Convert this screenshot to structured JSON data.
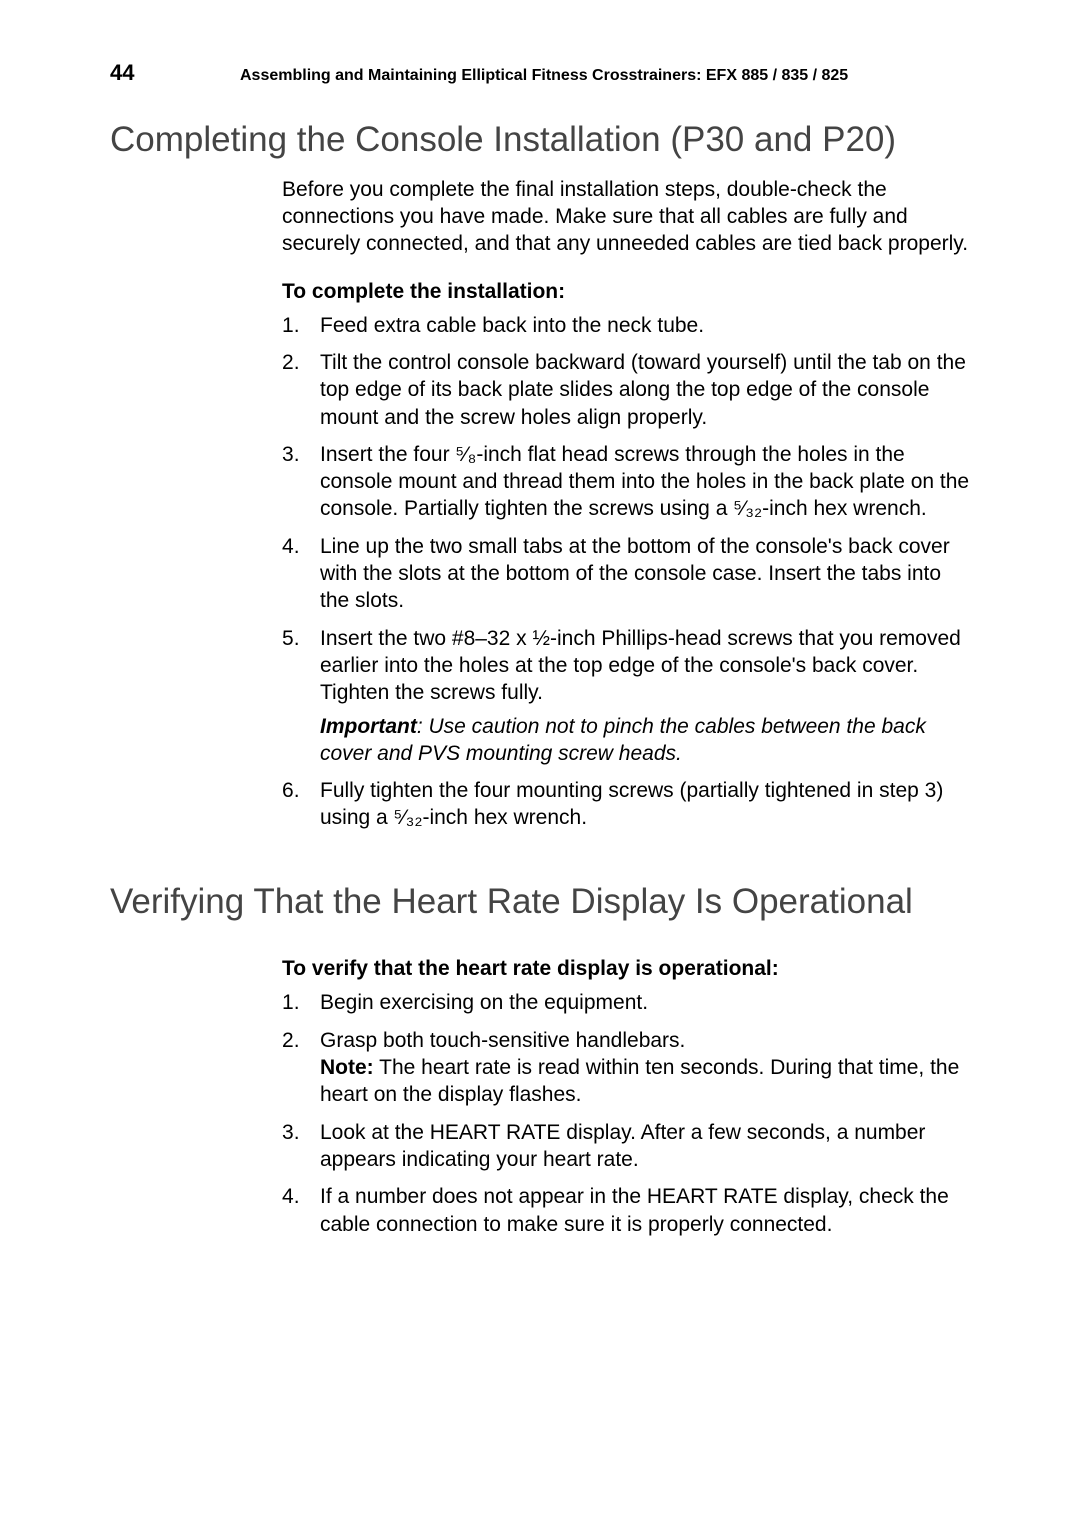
{
  "header": {
    "pageNumber": "44",
    "title": "Assembling and Maintaining Elliptical Fitness Crosstrainers: EFX 885 / 835 / 825"
  },
  "section1": {
    "heading": "Completing the Console Installation (P30 and P20)",
    "intro": "Before you complete the final installation steps, double-check the connections you have made. Make sure that all cables are fully and securely connected, and that any unneeded cables are tied back properly.",
    "subHeading": "To complete the installation:",
    "steps": [
      {
        "text": "Feed extra cable back into the neck tube."
      },
      {
        "text": "Tilt the control console backward (toward yourself) until the tab on the top edge of its back plate slides along the top edge of the console mount and the screw holes align properly."
      },
      {
        "text": "Insert the four ⁵⁄₈-inch flat head screws through the holes in the console mount and thread them into the holes in the back plate on the console. Partially tighten the screws using a ⁵⁄₃₂-inch hex wrench."
      },
      {
        "text": "Line up the two small tabs at the bottom of the console's back cover with the slots at the bottom of the console case. Insert the tabs into the slots."
      },
      {
        "text": "Insert the two #8–32 x ½-inch Phillips-head screws that you removed earlier into the holes at the top edge of the console's back cover. Tighten the screws fully.",
        "importantLabel": "Important",
        "importantText": ": Use caution not to pinch the cables between the back cover and PVS mounting screw heads."
      },
      {
        "text": "Fully tighten the four mounting screws (partially tightened in step 3) using a ⁵⁄₃₂-inch hex wrench."
      }
    ]
  },
  "section2": {
    "heading": "Verifying That the Heart Rate Display Is Operational",
    "subHeading": "To verify that the heart rate display is operational:",
    "steps": [
      {
        "text": "Begin exercising on the equipment."
      },
      {
        "text": "Grasp both touch-sensitive handlebars.",
        "noteLabel": "Note:",
        "noteText": " The heart rate is read within ten seconds. During that time, the heart on the display flashes."
      },
      {
        "text": "Look at the HEART RATE display. After a few seconds, a number appears indicating your heart rate."
      },
      {
        "text": "If a number does not appear in the HEART RATE display, check the cable connection to make sure it is properly connected."
      }
    ]
  }
}
